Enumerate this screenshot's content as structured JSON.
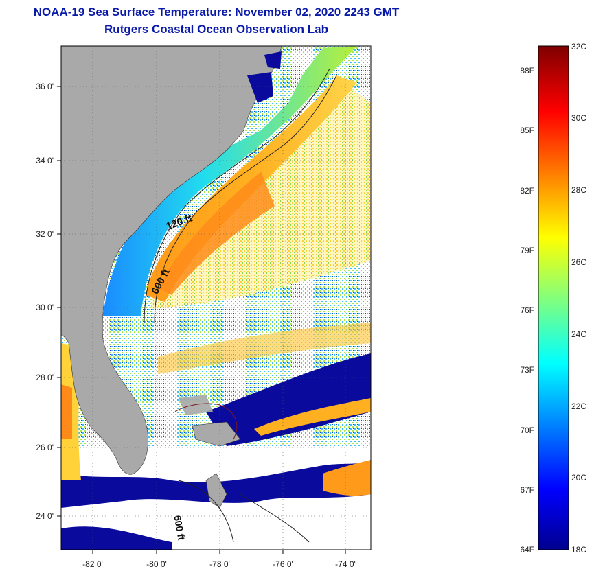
{
  "header": {
    "title": "NOAA-19 Sea Surface Temperature:  November 02, 2020 2243 GMT",
    "subtitle": "Rutgers Coastal Ocean Observation Lab"
  },
  "map": {
    "x_tick_labels": [
      "-82 0'",
      "-80 0'",
      "-78 0'",
      "-76 0'",
      "-74 0'"
    ],
    "y_tick_labels": [
      "36 0'",
      "34 0'",
      "32 0'",
      "30 0'",
      "28 0'",
      "26 0'",
      "24 0'"
    ],
    "contour_labels": [
      "120 ft",
      "600 ft",
      "600 ft"
    ],
    "colors": {
      "land": "#a9a9a9",
      "cloud": "#ffffff",
      "shallow_cold": "#0a0a9c"
    }
  },
  "colorbar": {
    "fahrenheit_labels": [
      "88F",
      "85F",
      "82F",
      "79F",
      "76F",
      "73F",
      "70F",
      "67F",
      "64F"
    ],
    "celsius_labels": [
      "32C",
      "30C",
      "28C",
      "26C",
      "24C",
      "22C",
      "20C",
      "18C"
    ],
    "range_c": [
      18,
      32
    ]
  }
}
